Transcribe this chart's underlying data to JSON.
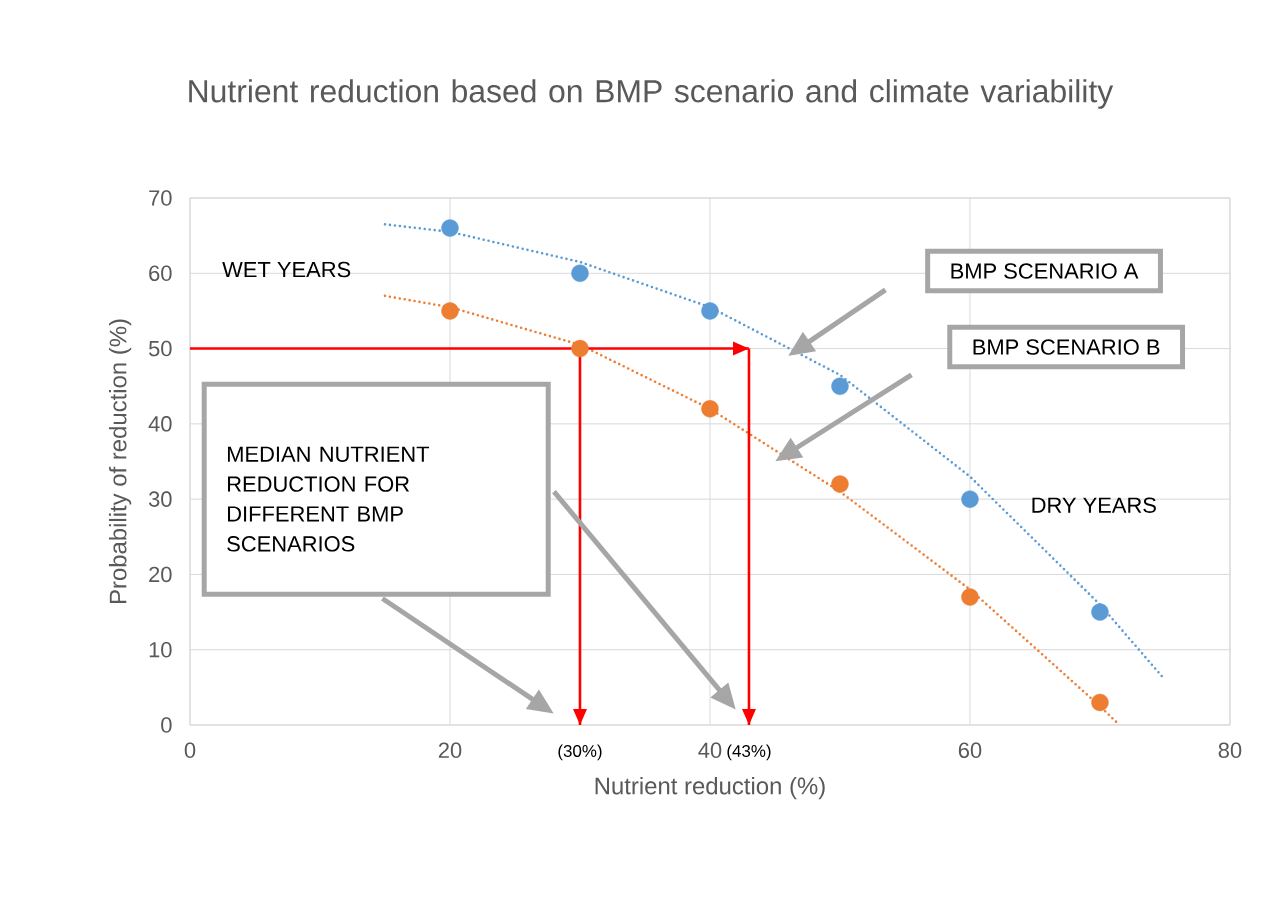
{
  "chart_data": {
    "type": "scatter",
    "title": "Nutrient reduction based on BMP scenario and climate variability",
    "xlabel": "Nutrient reduction (%)",
    "ylabel": "Probability of reduction (%)",
    "series": [
      {
        "color": "#5b9bd5",
        "marker": "circle",
        "x": [
          20,
          30,
          40,
          50,
          60,
          70
        ],
        "values": [
          66,
          60,
          55,
          45,
          30,
          15
        ]
      },
      {
        "color": "#ed7d31",
        "marker": "circle",
        "x": [
          20,
          30,
          40,
          50,
          60,
          70
        ],
        "values": [
          55,
          50,
          42,
          32,
          17,
          3
        ]
      },
      {
        "type": "line",
        "color": "#5b9bd5",
        "line_style": "dotted",
        "marker": "none",
        "x": [
          15,
          20,
          30,
          40,
          50,
          60,
          70,
          75
        ],
        "values": [
          66.5,
          65.5,
          61.5,
          55.5,
          46.5,
          33,
          16,
          6
        ]
      },
      {
        "type": "line",
        "color": "#ed7d31",
        "line_style": "dotted",
        "marker": "none",
        "x": [
          15,
          20,
          30,
          40,
          50,
          60,
          70,
          71.5
        ],
        "values": [
          57,
          55.5,
          50.5,
          42,
          31,
          18,
          2.5,
          0
        ]
      }
    ],
    "xlim": [
      0,
      80
    ],
    "xticks": [
      0,
      20,
      40,
      60,
      80
    ],
    "ylim": [
      0,
      70
    ],
    "yticks": [
      0,
      10,
      20,
      30,
      40,
      50,
      60,
      70
    ],
    "grid": true,
    "ref_lines": [
      {
        "axis": "y",
        "value": 50,
        "label": null,
        "color": "#ff0000"
      },
      {
        "axis": "x",
        "value": 30,
        "label": "(30%)",
        "color": "#ff0000"
      },
      {
        "axis": "x",
        "value": 43,
        "label": "(43%)",
        "color": "#ff0000"
      }
    ],
    "annotations": [
      "WET YEARS",
      "DRY YEARS",
      "BMP SCENARIO A",
      "BMP SCENARIO B",
      "MEDIAN NUTRIENT REDUCTION FOR DIFFERENT BMP SCENARIOS"
    ]
  }
}
